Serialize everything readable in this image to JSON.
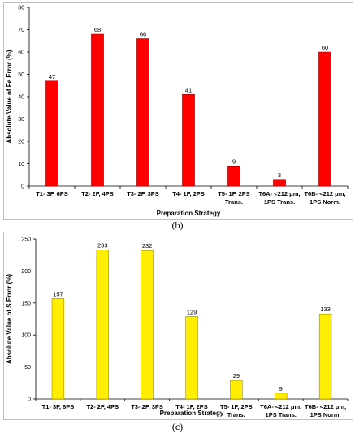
{
  "figures": [
    {
      "caption": "(b)",
      "chart_data": {
        "type": "bar",
        "categories": [
          [
            "T1- 3F, 6PS"
          ],
          [
            "T2- 2F, 4PS"
          ],
          [
            "T3- 2F, 3PS"
          ],
          [
            "T4- 1F, 2PS"
          ],
          [
            "T5- 1F, 2PS",
            "Trans."
          ],
          [
            "T6A- <212 μm,",
            "1PS Trans."
          ],
          [
            "T6B- <212 μm,",
            "1PS Norm."
          ]
        ],
        "values": [
          47,
          68,
          66,
          41,
          9,
          3,
          60
        ],
        "xlabel": "Preparation Strategy",
        "ylabel": "Absolute Value of Fe Error (%)",
        "ylim": [
          0,
          80
        ],
        "yticks": [
          0,
          10,
          20,
          30,
          40,
          50,
          60,
          70,
          80
        ],
        "bar_color": "#ff0000",
        "bar_stroke": "#7a0000",
        "data_labels": true,
        "grid": false
      }
    },
    {
      "caption": "(c)",
      "chart_data": {
        "type": "bar",
        "categories": [
          [
            "T1- 3F, 6PS"
          ],
          [
            "T2- 2F, 4PS"
          ],
          [
            "T3- 2F, 3PS"
          ],
          [
            "T4- 1F, 2PS"
          ],
          [
            "T5- 1F, 2PS",
            "Trans."
          ],
          [
            "T6A- <212 μm,",
            "1PS Trans."
          ],
          [
            "T6B- <212 μm,",
            "1PS Norm."
          ]
        ],
        "values": [
          157,
          233,
          232,
          129,
          29,
          9,
          133
        ],
        "xlabel": "Preparation Strategy",
        "ylabel": "Absolute Value of S Error (%)",
        "ylim": [
          0,
          250
        ],
        "yticks": [
          0,
          50,
          100,
          150,
          200,
          250
        ],
        "bar_color": "#ffee00",
        "bar_stroke": "#8a7a00",
        "data_labels": true,
        "grid": false
      }
    }
  ]
}
